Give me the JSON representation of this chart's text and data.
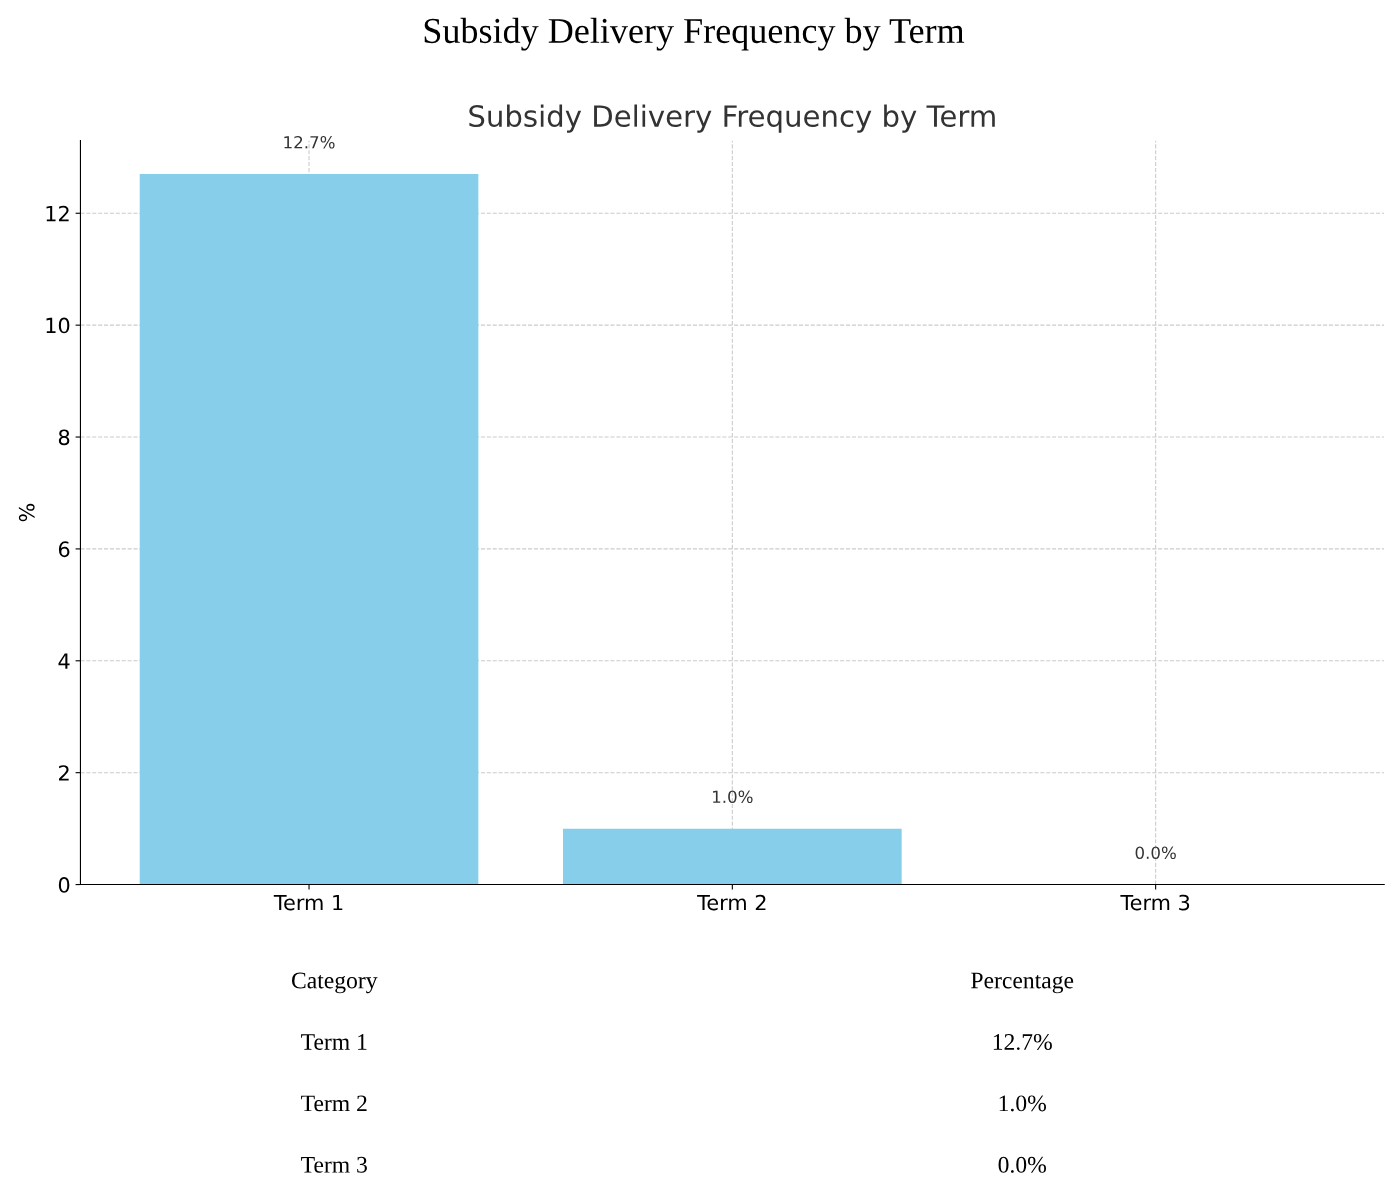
{
  "chart_data": {
    "type": "bar",
    "title": "Subsidy Delivery Frequency by Term",
    "subtitle": "Subsidy Delivery Frequency by Term",
    "ylabel": "%",
    "categories": [
      "Term 1",
      "Term 2",
      "Term 3"
    ],
    "values": [
      12.7,
      1.0,
      0.0
    ],
    "color": "#87ceeb",
    "value_labels": [
      "12.7%",
      "1.0%",
      "0.0%"
    ],
    "ylim": [
      0,
      13.3
    ],
    "yticks": [
      0,
      2,
      4,
      6,
      8,
      10,
      12
    ],
    "grid": true,
    "annotations": [
      "Category",
      "Percentage"
    ]
  }
}
